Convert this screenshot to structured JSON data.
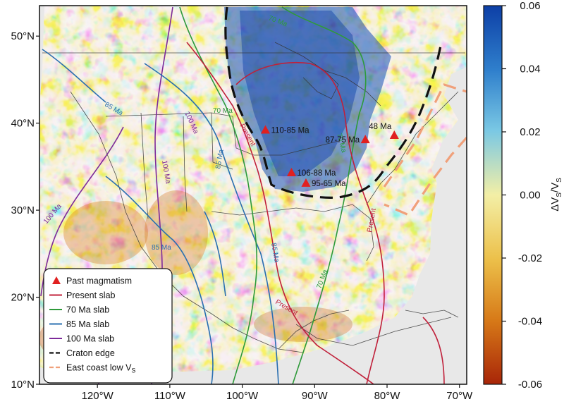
{
  "map": {
    "lat_ticks": [
      "50°N",
      "40°N",
      "30°N",
      "20°N",
      "10°N"
    ],
    "lon_ticks": [
      "120°W",
      "110°W",
      "100°W",
      "90°W",
      "80°W",
      "70°W"
    ],
    "extent": {
      "lon_min": -128,
      "lon_max": -69,
      "lat_min": 10,
      "lat_max": 53.5
    }
  },
  "colorbar": {
    "ticks": [
      "0.06",
      "0.04",
      "0.02",
      "0.00",
      "-0.02",
      "-0.04",
      "-0.06"
    ],
    "title_main": "ΔV",
    "title_sub1": "S",
    "title_mid": "/V",
    "title_sub2": "S",
    "colors": [
      "#1045b0",
      "#4aa0d8",
      "#a6dfe8",
      "#f2e89a",
      "#e8a52a",
      "#b2300c"
    ]
  },
  "slab_labels": {
    "present": "Present",
    "present_south": "Present",
    "seventy_north": "70 Ma",
    "seventy_east": "70 Ma",
    "seventy_south": "70 Ma",
    "eighty_five_north": "85 Ma",
    "eighty_five_central": "85 Ma",
    "eighty_five_south": "85 Ma",
    "eighty_five_west": "85 Ma",
    "hundred_west": "100 Ma",
    "hundred_central": "100 Ma",
    "seventy_west": "70 Ma",
    "hundred_south": "100 Ma"
  },
  "magmatism": [
    {
      "label": "110-85 Ma",
      "lon": -96.8,
      "lat": 39.2
    },
    {
      "label": "106-88 Ma",
      "lon": -93.2,
      "lat": 34.3
    },
    {
      "label": "95-65 Ma",
      "lon": -91.2,
      "lat": 33.1
    },
    {
      "label": "87-75 Ma",
      "lon": -83.0,
      "lat": 38.1
    },
    {
      "label": "48 Ma",
      "lon": -79.0,
      "lat": 38.6
    }
  ],
  "legend": {
    "items": [
      {
        "label": "Past magmatism",
        "kind": "triangle",
        "color": "#e02020"
      },
      {
        "label": "Present slab",
        "kind": "line",
        "color": "#c0203a"
      },
      {
        "label": "70 Ma slab",
        "kind": "line",
        "color": "#2e9a3a"
      },
      {
        "label": "85 Ma slab",
        "kind": "line",
        "color": "#2a6fb0"
      },
      {
        "label": "100 Ma slab",
        "kind": "line",
        "color": "#7d2a9a"
      },
      {
        "label": "Craton edge",
        "kind": "dashed",
        "color": "#111111"
      },
      {
        "label": "East coast low V",
        "sub": "S",
        "kind": "dashed",
        "color": "#f0a07a"
      }
    ]
  },
  "colors": {
    "present": "#c0203a",
    "ma70": "#2e9a3a",
    "ma85": "#2a6fb0",
    "ma100": "#7d2a9a",
    "craton": "#111111",
    "eastcoast": "#f0a07a",
    "triangle": "#e02020"
  }
}
